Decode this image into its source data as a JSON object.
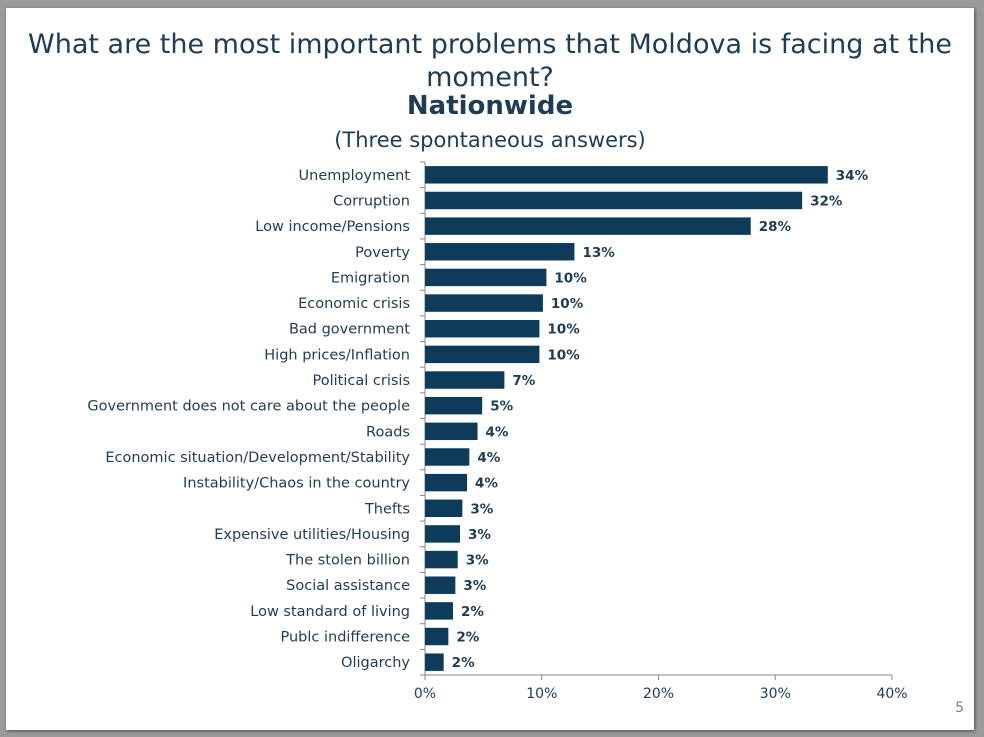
{
  "slide": {
    "page_number": "5"
  },
  "chart_data": {
    "type": "bar",
    "orientation": "horizontal",
    "title": "What are the most important problems that Moldova is facing at the moment?",
    "subtitle": "Nationwide",
    "note": "(Three spontaneous answers)",
    "categories": [
      "Unemployment",
      "Corruption",
      "Low income/Pensions",
      "Poverty",
      "Emigration",
      "Economic crisis",
      "Bad government",
      "High prices/Inflation",
      "Political crisis",
      "Government does not care about the people",
      "Roads",
      "Economic situation/Development/Stability",
      "Instability/Chaos in the country",
      "Thefts",
      "Expensive utilities/Housing",
      "The stolen billion",
      "Social assistance",
      "Low standard of living",
      "Publc indifference",
      "Oligarchy"
    ],
    "values": [
      34.5,
      32.3,
      27.9,
      12.8,
      10.4,
      10.1,
      9.8,
      9.8,
      6.8,
      4.9,
      4.5,
      3.8,
      3.6,
      3.2,
      3.0,
      2.8,
      2.6,
      2.4,
      2.0,
      1.6
    ],
    "data_labels": [
      "34%",
      "32%",
      "28%",
      "13%",
      "10%",
      "10%",
      "10%",
      "10%",
      "7%",
      "5%",
      "4%",
      "4%",
      "4%",
      "3%",
      "3%",
      "3%",
      "3%",
      "2%",
      "2%",
      "2%"
    ],
    "xlim": [
      0,
      40
    ],
    "x_ticks": [
      "0%",
      "10%",
      "20%",
      "30%",
      "40%"
    ],
    "x_tick_values": [
      0,
      10,
      20,
      30,
      40
    ],
    "grid": false,
    "bar_color": "#0f3b5a",
    "text_color": "#1f3c55"
  }
}
